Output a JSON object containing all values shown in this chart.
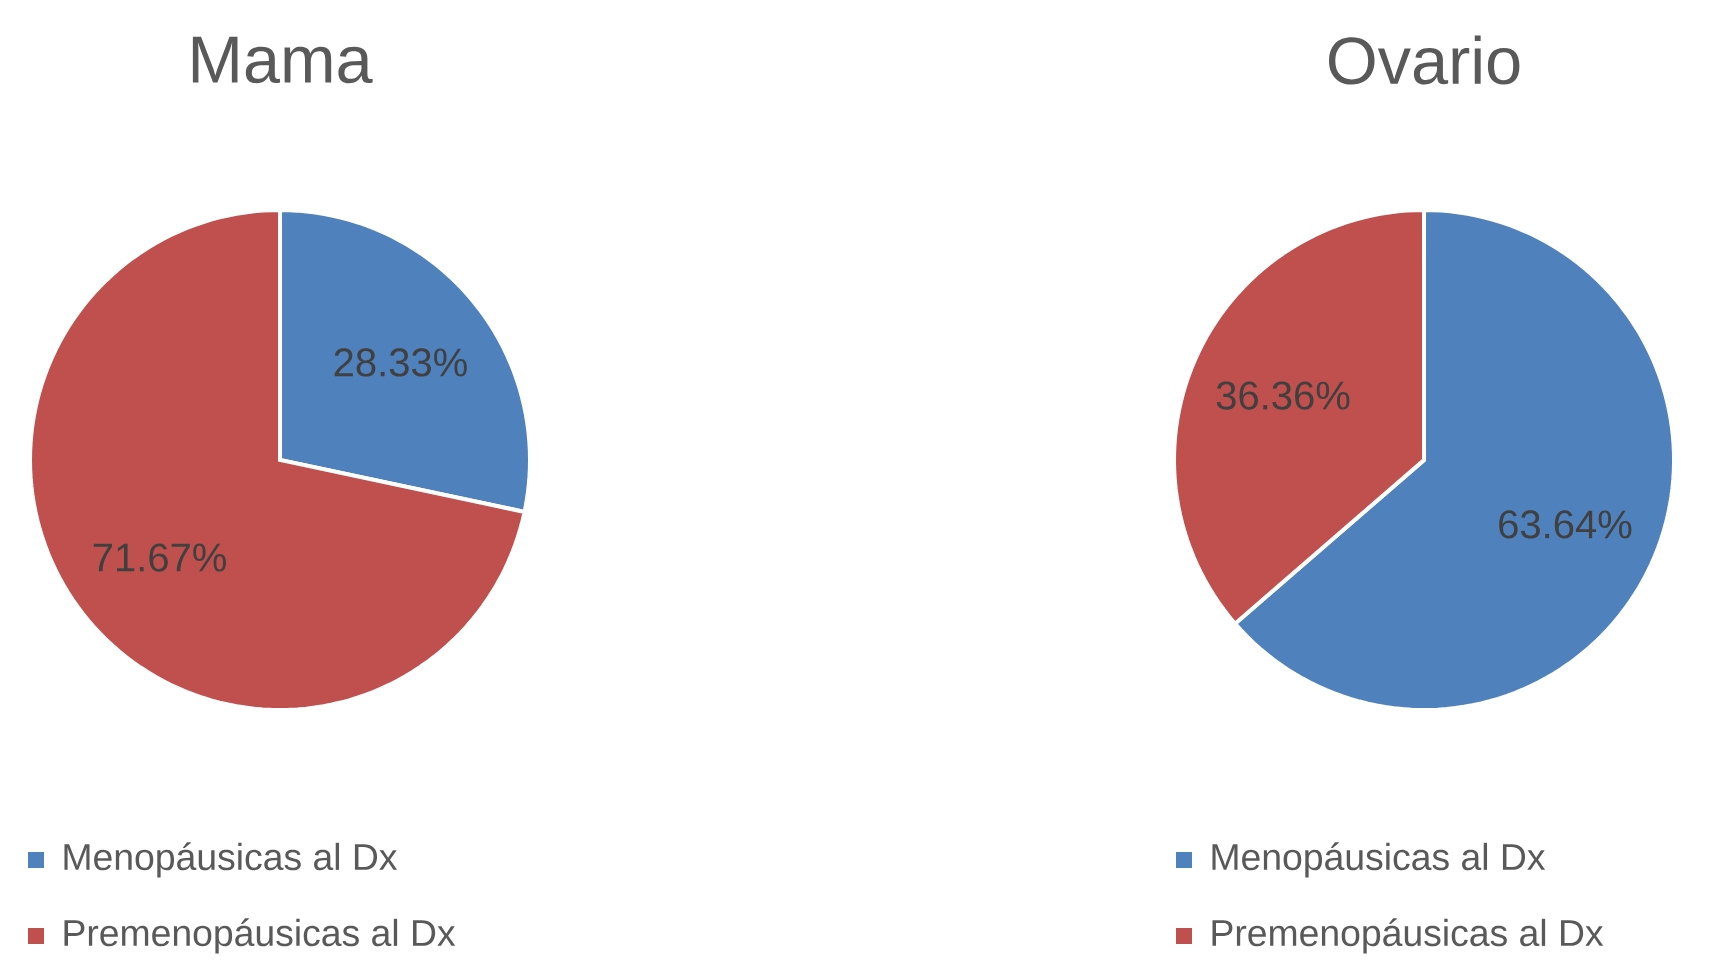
{
  "chart_data": [
    {
      "type": "pie",
      "title": "Mama",
      "categories": [
        "Menopáusicas al Dx",
        "Premenopáusicas al Dx"
      ],
      "values": [
        28.33,
        71.67
      ],
      "colors": [
        "#4f81bd",
        "#c0504d"
      ],
      "value_labels": [
        "28.33%",
        "71.67%"
      ],
      "legend": "bottom"
    },
    {
      "type": "pie",
      "title": "Ovario",
      "categories": [
        "Menopáusicas al Dx",
        "Premenopáusicas al Dx"
      ],
      "values": [
        63.64,
        36.36
      ],
      "colors": [
        "#4f81bd",
        "#c0504d"
      ],
      "value_labels": [
        "63.64%",
        "36.36%"
      ],
      "legend": "bottom"
    }
  ]
}
